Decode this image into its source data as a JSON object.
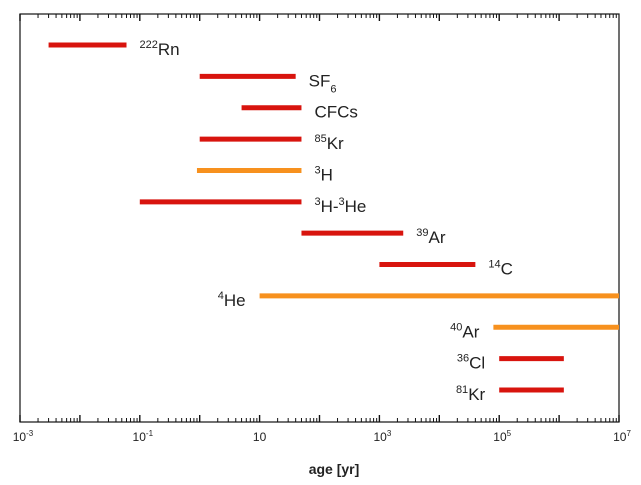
{
  "chart_data": {
    "type": "range-bar",
    "title": "",
    "xlabel": "age [yr]",
    "ylabel": "",
    "xscale": "log",
    "xlim": [
      0.001,
      10000000
    ],
    "grid": false,
    "colors": {
      "red": "#d8140e",
      "orange": "#f7911e"
    },
    "x_ticks": [
      {
        "value": 0.001,
        "base": "10",
        "exp": "-3"
      },
      {
        "value": 0.1,
        "base": "10",
        "exp": "-1"
      },
      {
        "value": 10,
        "base": "10",
        "exp": ""
      },
      {
        "value": 1000,
        "base": "10",
        "exp": "3"
      },
      {
        "value": 100000,
        "base": "10",
        "exp": "5"
      },
      {
        "value": 10000000,
        "base": "10",
        "exp": "7"
      }
    ],
    "series": [
      {
        "name": "222Rn",
        "label_parts": [
          [
            "sup",
            "222"
          ],
          [
            "",
            "Rn"
          ]
        ],
        "from": 0.003,
        "to": 0.06,
        "color": "red",
        "label_side": "right"
      },
      {
        "name": "SF6",
        "label_parts": [
          [
            "",
            "SF"
          ],
          [
            "sub",
            "6"
          ]
        ],
        "from": 1,
        "to": 40,
        "color": "red",
        "label_side": "right"
      },
      {
        "name": "CFCs",
        "label_parts": [
          [
            "",
            "CFCs"
          ]
        ],
        "from": 5,
        "to": 50,
        "color": "red",
        "label_side": "right"
      },
      {
        "name": "85Kr",
        "label_parts": [
          [
            "sup",
            "85"
          ],
          [
            "",
            "Kr"
          ]
        ],
        "from": 1,
        "to": 50,
        "color": "red",
        "label_side": "right"
      },
      {
        "name": "3H",
        "label_parts": [
          [
            "sup",
            "3"
          ],
          [
            "",
            "H"
          ]
        ],
        "from": 0.9,
        "to": 50,
        "color": "orange",
        "label_side": "right"
      },
      {
        "name": "3H-3He",
        "label_parts": [
          [
            "sup",
            "3"
          ],
          [
            "",
            "H-"
          ],
          [
            "sup",
            "3"
          ],
          [
            "",
            "He"
          ]
        ],
        "from": 0.1,
        "to": 50,
        "color": "red",
        "label_side": "right"
      },
      {
        "name": "39Ar",
        "label_parts": [
          [
            "sup",
            "39"
          ],
          [
            "",
            "Ar"
          ]
        ],
        "from": 50,
        "to": 2500,
        "color": "red",
        "label_side": "right"
      },
      {
        "name": "14C",
        "label_parts": [
          [
            "sup",
            "14"
          ],
          [
            "",
            "C"
          ]
        ],
        "from": 1000,
        "to": 40000,
        "color": "red",
        "label_side": "right"
      },
      {
        "name": "4He",
        "label_parts": [
          [
            "sup",
            "4"
          ],
          [
            "",
            "He"
          ]
        ],
        "from": 10,
        "to": 10000000,
        "color": "orange",
        "label_side": "left"
      },
      {
        "name": "40Ar",
        "label_parts": [
          [
            "sup",
            "40"
          ],
          [
            "",
            "Ar"
          ]
        ],
        "from": 80000,
        "to": 10000000,
        "color": "orange",
        "label_side": "left"
      },
      {
        "name": "36Cl",
        "label_parts": [
          [
            "sup",
            "36"
          ],
          [
            "",
            "Cl"
          ]
        ],
        "from": 100000,
        "to": 1200000,
        "color": "red",
        "label_side": "left"
      },
      {
        "name": "81Kr",
        "label_parts": [
          [
            "sup",
            "81"
          ],
          [
            "",
            "Kr"
          ]
        ],
        "from": 100000,
        "to": 1200000,
        "color": "red",
        "label_side": "left"
      }
    ]
  }
}
